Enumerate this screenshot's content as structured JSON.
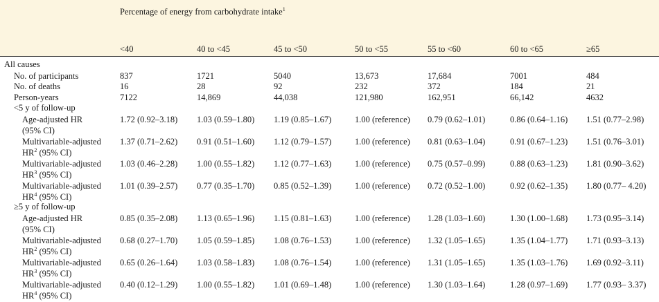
{
  "header": {
    "title": "Percentage of energy from carbohydrate intake",
    "title_sup": "1",
    "columns": [
      "<40",
      "40 to <45",
      "45 to <50",
      "50 to <55",
      "55 to <60",
      "60 to <65",
      "≥65"
    ]
  },
  "sections": {
    "all_causes": "All causes",
    "lt5": "<5 y of follow-up",
    "ge5": "≥5 y of follow-up"
  },
  "rows": [
    {
      "l1": "No. of participants",
      "sup": "",
      "l2": "",
      "vals": [
        "837",
        "1721",
        "5040",
        "13,673",
        "17,684",
        "7001",
        "484"
      ]
    },
    {
      "l1": "No. of deaths",
      "sup": "",
      "l2": "",
      "vals": [
        "16",
        "28",
        "92",
        "232",
        "372",
        "184",
        "21"
      ]
    },
    {
      "l1": "Person-years",
      "sup": "",
      "l2": "",
      "vals": [
        "7122",
        "14,869",
        "44,038",
        "121,980",
        "162,951",
        "66,142",
        "4632"
      ]
    },
    {
      "l1": "Age-adjusted HR",
      "sup": "",
      "l2": "(95% CI)",
      "vals": [
        "1.72 (0.92–3.18)",
        "1.03 (0.59–1.80)",
        "1.19 (0.85–1.67)",
        "1.00 (reference)",
        "0.79 (0.62–1.01)",
        "0.86 (0.64–1.16)",
        "1.51 (0.77–2.98)"
      ]
    },
    {
      "l1": "Multivariable-adjusted",
      "sup": "2",
      "l2": " (95% CI)",
      "vals": [
        "1.37 (0.71–2.62)",
        "0.91 (0.51–1.60)",
        "1.12 (0.79–1.57)",
        "1.00 (reference)",
        "0.81 (0.63–1.04)",
        "0.91 (0.67–1.23)",
        "1.51 (0.76–3.01)"
      ]
    },
    {
      "l1": "Multivariable-adjusted",
      "sup": "3",
      "l2": " (95% CI)",
      "vals": [
        "1.03 (0.46–2.28)",
        "1.00 (0.55–1.82)",
        "1.12 (0.77–1.63)",
        "1.00 (reference)",
        "0.75 (0.57–0.99)",
        "0.88 (0.63–1.23)",
        "1.81 (0.90–3.62)"
      ]
    },
    {
      "l1": "Multivariable-adjusted",
      "sup": "4",
      "l2": " (95% CI)",
      "vals": [
        "1.01 (0.39–2.57)",
        "0.77 (0.35–1.70)",
        "0.85 (0.52–1.39)",
        "1.00 (reference)",
        "0.72 (0.52–1.00)",
        "0.92 (0.62–1.35)",
        "1.80 (0.77– 4.20)"
      ]
    },
    {
      "l1": "Age-adjusted HR",
      "sup": "",
      "l2": "(95% CI)",
      "vals": [
        "0.85 (0.35–2.08)",
        "1.13 (0.65–1.96)",
        "1.15 (0.81–1.63)",
        "1.00 (reference)",
        "1.28 (1.03–1.60)",
        "1.30 (1.00–1.68)",
        "1.73 (0.95–3.14)"
      ]
    },
    {
      "l1": "Multivariable-adjusted",
      "sup": "2",
      "l2": " (95% CI)",
      "vals": [
        "0.68 (0.27–1.70)",
        "1.05 (0.59–1.85)",
        "1.08 (0.76–1.53)",
        "1.00 (reference)",
        "1.32 (1.05–1.65)",
        "1.35 (1.04–1.77)",
        "1.71 (0.93–3.13)"
      ]
    },
    {
      "l1": "Multivariable-adjusted",
      "sup": "3",
      "l2": " (95% CI)",
      "vals": [
        "0.65 (0.26–1.64)",
        "1.03 (0.58–1.83)",
        "1.08 (0.76–1.54)",
        "1.00 (reference)",
        "1.31 (1.05–1.65)",
        "1.35 (1.03–1.76)",
        "1.69 (0.92–3.11)"
      ]
    },
    {
      "l1": "Multivariable-adjusted",
      "sup": "4",
      "l2": " (95% CI)",
      "vals": [
        "0.40 (0.12–1.29)",
        "1.00 (0.55–1.82)",
        "1.01 (0.69–1.48)",
        "1.00 (reference)",
        "1.30 (1.03–1.64)",
        "1.28 (0.97–1.69)",
        "1.77 (0.93– 3.37)"
      ]
    }
  ]
}
